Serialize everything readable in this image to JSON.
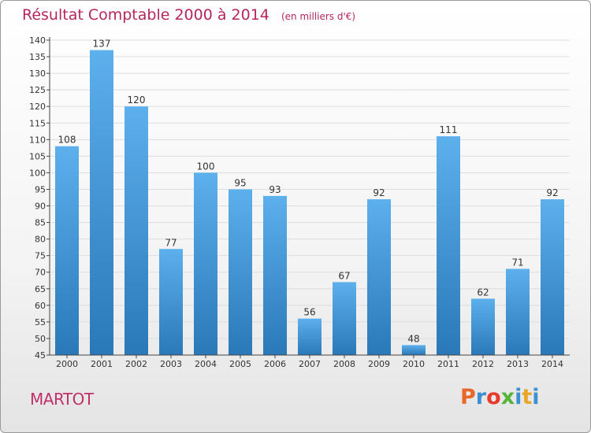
{
  "header": {
    "title": "Résultat Comptable 2000 à 2014",
    "unit": "(en milliers d'€)"
  },
  "footer": {
    "town": "MARTOT",
    "brand": "Proxiti",
    "brand_colors": [
      "#e8682a",
      "#3c8fd0",
      "#e83a2a",
      "#57b33a",
      "#3c8fd0",
      "#e8a62a",
      "#3c8fd0"
    ]
  },
  "colors": {
    "title": "#b5255e",
    "bar_top": "#5cb0ec",
    "bar_bottom": "#2a78b8",
    "axis": "#444444",
    "grid": "#dddddd"
  },
  "chart_data": {
    "type": "bar",
    "title": "Résultat Comptable 2000 à 2014",
    "categories": [
      "2000",
      "2001",
      "2002",
      "2003",
      "2004",
      "2005",
      "2006",
      "2007",
      "2008",
      "2009",
      "2010",
      "2011",
      "2012",
      "2013",
      "2014"
    ],
    "values": [
      108,
      137,
      120,
      77,
      100,
      95,
      93,
      56,
      67,
      92,
      48,
      111,
      62,
      71,
      92
    ],
    "ylim": [
      45,
      140
    ],
    "yticks": [
      45,
      50,
      55,
      60,
      65,
      70,
      75,
      80,
      85,
      90,
      95,
      100,
      105,
      110,
      115,
      120,
      125,
      130,
      135,
      140
    ],
    "grid": true,
    "data_labels": true
  }
}
